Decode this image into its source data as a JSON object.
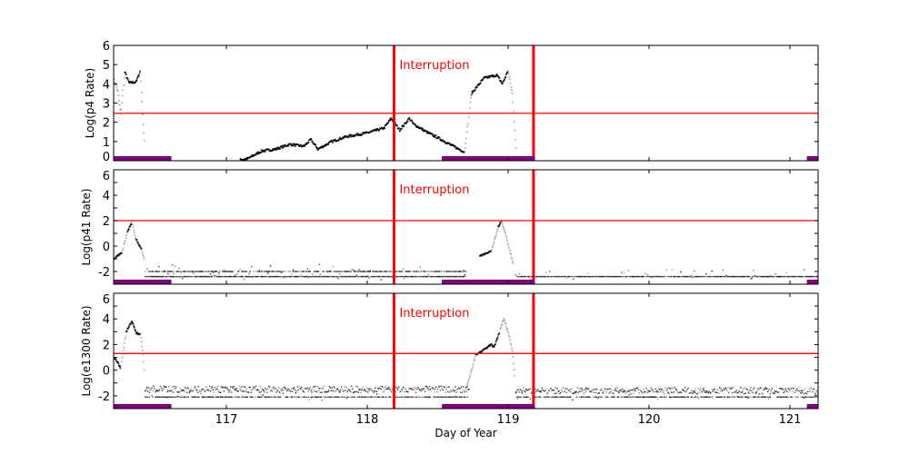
{
  "chart_data": [
    {
      "type": "scatter",
      "ylabel": "Log(p4 Rate)",
      "xlim": [
        116.2,
        121.2
      ],
      "ylim": [
        0,
        6
      ],
      "yticks": [
        "0",
        "1",
        "2",
        "3",
        "4",
        "5",
        "6"
      ],
      "threshold": 2.47,
      "annotation": "Interruption",
      "trace": [
        [
          [
            116.2,
            4.3
          ],
          [
            116.23,
            3.6
          ],
          [
            116.25,
            2.4
          ],
          [
            116.28,
            4.6
          ],
          [
            116.31,
            4.05
          ],
          [
            116.36,
            4.1
          ],
          [
            116.39,
            4.7
          ],
          [
            116.41,
            1.9
          ],
          [
            116.42,
            0.6
          ]
        ],
        [
          [
            117.1,
            0.05
          ],
          [
            117.15,
            0.1
          ],
          [
            117.25,
            0.5
          ],
          [
            117.35,
            0.6
          ],
          [
            117.45,
            0.85
          ],
          [
            117.55,
            0.75
          ],
          [
            117.6,
            1.1
          ],
          [
            117.65,
            0.6
          ],
          [
            117.75,
            1.0
          ],
          [
            117.85,
            1.25
          ],
          [
            118.0,
            1.45
          ],
          [
            118.12,
            1.7
          ],
          [
            118.17,
            2.2
          ],
          [
            118.23,
            1.6
          ],
          [
            118.3,
            2.2
          ],
          [
            118.33,
            1.9
          ],
          [
            118.42,
            1.5
          ],
          [
            118.5,
            1.2
          ],
          [
            118.6,
            0.8
          ],
          [
            118.69,
            0.45
          ],
          [
            118.74,
            3.5
          ],
          [
            118.83,
            4.3
          ],
          [
            118.92,
            4.45
          ],
          [
            118.96,
            4.0
          ],
          [
            119.0,
            4.7
          ],
          [
            119.03,
            3.5
          ],
          [
            119.06,
            0.2
          ]
        ]
      ],
      "floor": []
    },
    {
      "type": "scatter",
      "ylabel": "Log(p41 Rate)",
      "xlim": [
        116.2,
        121.2
      ],
      "ylim": [
        -3,
        6
      ],
      "yticks": [
        "-2",
        "0",
        "2",
        "4",
        "6"
      ],
      "threshold": 2.0,
      "annotation": "Interruption",
      "trace": [
        [
          [
            116.2,
            -1.0
          ],
          [
            116.26,
            -0.5
          ],
          [
            116.3,
            1.2
          ],
          [
            116.33,
            1.85
          ],
          [
            116.36,
            0.5
          ],
          [
            116.4,
            -0.3
          ],
          [
            116.42,
            -1.2
          ]
        ],
        [
          [
            118.8,
            -0.8
          ],
          [
            118.88,
            -0.4
          ],
          [
            118.93,
            1.5
          ],
          [
            118.95,
            2.0
          ],
          [
            118.98,
            1.0
          ],
          [
            119.02,
            -0.7
          ],
          [
            119.04,
            -1.5
          ]
        ]
      ],
      "floor": [
        {
          "from": 116.42,
          "to": 118.7,
          "levels": [
            -2.4,
            -2.0
          ]
        },
        {
          "from": 119.05,
          "to": 121.2,
          "levels": [
            -2.4
          ]
        }
      ]
    },
    {
      "type": "scatter",
      "ylabel": "Log(e1300 Rate)",
      "xlabel": "Day of Year",
      "xlim": [
        116.2,
        121.2
      ],
      "ylim": [
        -3,
        6
      ],
      "xticks": [
        "117",
        "118",
        "119",
        "120",
        "121"
      ],
      "yticks": [
        "-2",
        "0",
        "2",
        "4",
        "6"
      ],
      "threshold": 1.3,
      "annotation": "Interruption",
      "trace": [
        [
          [
            116.2,
            1.0
          ],
          [
            116.23,
            0.6
          ],
          [
            116.25,
            0.1
          ],
          [
            116.27,
            1.5
          ],
          [
            116.29,
            3.0
          ],
          [
            116.33,
            3.85
          ],
          [
            116.36,
            2.9
          ],
          [
            116.39,
            2.8
          ],
          [
            116.41,
            1.2
          ],
          [
            116.42,
            -0.6
          ]
        ],
        [
          [
            118.7,
            -1.5
          ],
          [
            118.74,
            0.0
          ],
          [
            118.77,
            1.2
          ],
          [
            118.83,
            1.6
          ],
          [
            118.88,
            2.0
          ],
          [
            118.9,
            1.8
          ],
          [
            118.94,
            3.0
          ],
          [
            118.97,
            4.05
          ],
          [
            119.0,
            3.0
          ],
          [
            119.03,
            1.5
          ],
          [
            119.05,
            -0.9
          ]
        ]
      ],
      "floor": [
        {
          "from": 116.42,
          "to": 118.72,
          "levels": [
            -1.5,
            -2.1
          ]
        },
        {
          "from": 119.05,
          "to": 121.2,
          "levels": [
            -1.6,
            -2.1
          ]
        }
      ]
    }
  ],
  "interruptions": [
    118.19,
    119.18
  ],
  "coverage_gaps": [
    [
      116.2,
      116.61
    ],
    [
      118.53,
      119.19
    ],
    [
      121.12,
      121.2
    ]
  ],
  "colors": {
    "threshold": "#ff0000",
    "interruption": "#ff0000",
    "gap_bar": "#800080",
    "points": "#000000"
  }
}
